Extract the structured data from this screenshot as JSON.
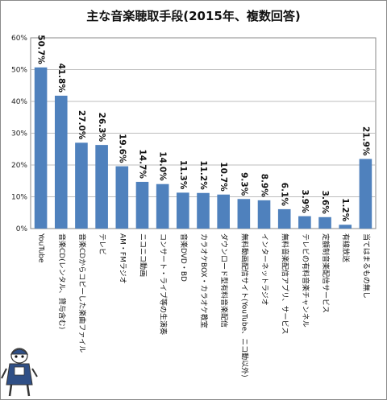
{
  "chart_data": {
    "type": "bar",
    "title": "主な音楽聴取手段(2015年、複数回答)",
    "categories": [
      "YouTube",
      "音楽CD(レンタル、貸与含む)",
      "音楽CDからコピーした楽曲ファイル",
      "テレビ",
      "AM・FMラジオ",
      "ニコニコ動画",
      "コンサート・ライブ等の生演奏",
      "音楽DVD・BD",
      "カラオケBOX・カラオケ教室",
      "ダウンロード型有料音楽配信",
      "無料動画配信サイト(YouTube、ニコ動以外)",
      "インターネットラジオ",
      "無料音楽配信アプリ、サービス",
      "テレビの有料音楽チャンネル",
      "定額制音楽配信サービス",
      "有線放送",
      "当てはまるもの無し"
    ],
    "values": [
      50.7,
      41.8,
      27.0,
      26.3,
      19.6,
      14.7,
      14.0,
      11.3,
      11.2,
      10.7,
      9.3,
      8.9,
      6.1,
      3.9,
      3.6,
      1.2,
      21.9
    ],
    "value_labels": [
      "50.7%",
      "41.8%",
      "27.0%",
      "26.3%",
      "19.6%",
      "14.7%",
      "14.0%",
      "11.3%",
      "11.2%",
      "10.7%",
      "9.3%",
      "8.9%",
      "6.1%",
      "3.9%",
      "3.6%",
      "1.2%",
      "21.9%"
    ],
    "y_ticks": [
      "0%",
      "10%",
      "20%",
      "30%",
      "40%",
      "50%",
      "60%"
    ],
    "ylim": [
      0,
      60
    ],
    "xlabel": "",
    "ylabel": "",
    "grid": true,
    "bar_color": "#4f81bd"
  }
}
